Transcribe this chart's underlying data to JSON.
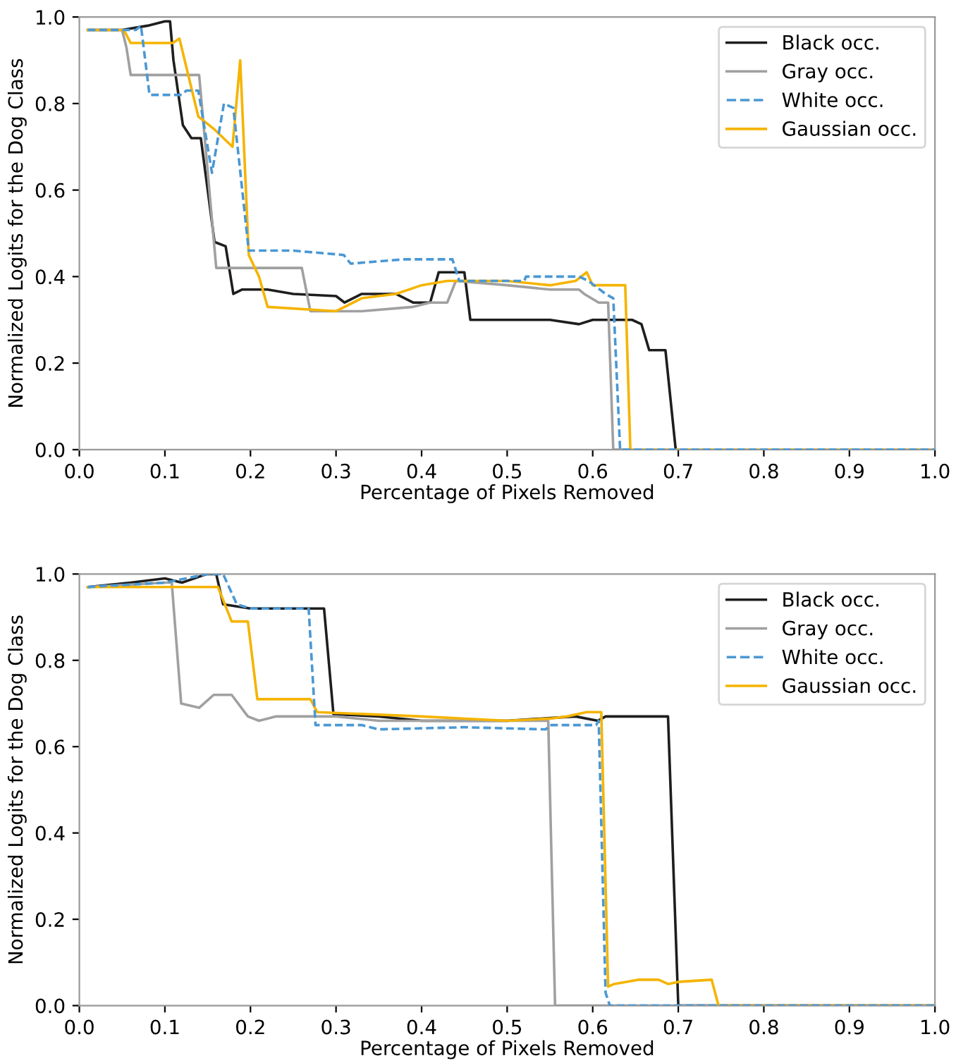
{
  "chart_data": [
    {
      "type": "line",
      "xlabel": "Percentage of Pixels Removed",
      "ylabel": "Normalized Logits for the Dog Class",
      "xlim": [
        0,
        1
      ],
      "ylim": [
        0,
        1
      ],
      "xticks": [
        {
          "value": 0,
          "label": "0.0"
        },
        {
          "value": 0.1,
          "label": "0.1"
        },
        {
          "value": 0.2,
          "label": "0.2"
        },
        {
          "value": 0.3,
          "label": "0.3"
        },
        {
          "value": 0.4,
          "label": "0.4"
        },
        {
          "value": 0.5,
          "label": "0.5"
        },
        {
          "value": 0.6,
          "label": "0.6"
        },
        {
          "value": 0.7,
          "label": "0.7"
        },
        {
          "value": 0.8,
          "label": "0.8"
        },
        {
          "value": 0.9,
          "label": "0.9"
        },
        {
          "value": 1,
          "label": "1.0"
        }
      ],
      "yticks": [
        {
          "value": 0,
          "label": "0.0"
        },
        {
          "value": 0.2,
          "label": "0.2"
        },
        {
          "value": 0.4,
          "label": "0.4"
        },
        {
          "value": 0.6,
          "label": "0.6"
        },
        {
          "value": 0.8,
          "label": "0.8"
        },
        {
          "value": 1,
          "label": "1.0"
        }
      ],
      "grid": false,
      "legend": "top right",
      "marker": "none",
      "series": [
        {
          "name": "Black occ.",
          "color": "#1e1e1e",
          "line_style": "solid",
          "x": [
            0.01,
            0.05,
            0.08,
            0.1,
            0.106,
            0.11,
            0.121,
            0.131,
            0.142,
            0.158,
            0.171,
            0.18,
            0.19,
            0.22,
            0.25,
            0.3,
            0.31,
            0.33,
            0.37,
            0.39,
            0.41,
            0.42,
            0.45,
            0.457,
            0.5,
            0.55,
            0.584,
            0.6,
            0.646,
            0.657,
            0.666,
            0.685,
            0.697,
            1.0
          ],
          "values": [
            0.97,
            0.97,
            0.98,
            0.99,
            0.99,
            0.9,
            0.75,
            0.72,
            0.72,
            0.48,
            0.47,
            0.36,
            0.37,
            0.37,
            0.36,
            0.355,
            0.34,
            0.36,
            0.36,
            0.34,
            0.34,
            0.41,
            0.41,
            0.3,
            0.3,
            0.3,
            0.29,
            0.3,
            0.3,
            0.29,
            0.23,
            0.23,
            0,
            0
          ]
        },
        {
          "name": "Gray occ.",
          "color": "#a0a0a0",
          "line_style": "solid",
          "x": [
            0.01,
            0.05,
            0.055,
            0.06,
            0.14,
            0.16,
            0.26,
            0.27,
            0.33,
            0.39,
            0.41,
            0.42,
            0.43,
            0.44,
            0.5,
            0.55,
            0.584,
            0.59,
            0.607,
            0.618,
            0.624,
            1.0
          ],
          "values": [
            0.97,
            0.97,
            0.93,
            0.866,
            0.866,
            0.42,
            0.42,
            0.32,
            0.32,
            0.33,
            0.34,
            0.34,
            0.34,
            0.39,
            0.38,
            0.37,
            0.37,
            0.36,
            0.34,
            0.34,
            0,
            0
          ]
        },
        {
          "name": "White occ.",
          "color": "#4a98d4",
          "line_style": "dashed",
          "x": [
            0.01,
            0.066,
            0.072,
            0.082,
            0.12,
            0.125,
            0.139,
            0.155,
            0.169,
            0.18,
            0.198,
            0.25,
            0.309,
            0.317,
            0.38,
            0.436,
            0.444,
            0.52,
            0.522,
            0.584,
            0.595,
            0.615,
            0.624,
            0.632,
            1.0
          ],
          "values": [
            0.97,
            0.97,
            0.98,
            0.82,
            0.82,
            0.83,
            0.83,
            0.64,
            0.8,
            0.79,
            0.46,
            0.46,
            0.45,
            0.43,
            0.44,
            0.44,
            0.39,
            0.39,
            0.4,
            0.4,
            0.39,
            0.36,
            0.35,
            0,
            0
          ]
        },
        {
          "name": "Gaussian occ.",
          "color": "#f5b400",
          "line_style": "solid",
          "x": [
            0.01,
            0.052,
            0.06,
            0.109,
            0.117,
            0.139,
            0.158,
            0.179,
            0.188,
            0.198,
            0.21,
            0.22,
            0.3,
            0.31,
            0.33,
            0.37,
            0.4,
            0.43,
            0.5,
            0.55,
            0.58,
            0.593,
            0.6,
            0.638,
            0.644,
            1.0
          ],
          "values": [
            0.97,
            0.97,
            0.94,
            0.94,
            0.95,
            0.77,
            0.74,
            0.7,
            0.9,
            0.45,
            0.4,
            0.33,
            0.32,
            0.33,
            0.35,
            0.36,
            0.38,
            0.39,
            0.39,
            0.38,
            0.39,
            0.41,
            0.38,
            0.38,
            0,
            0
          ]
        }
      ]
    },
    {
      "type": "line",
      "xlabel": "Percentage of Pixels Removed",
      "ylabel": "Normalized Logits for the Dog Class",
      "xlim": [
        0,
        1
      ],
      "ylim": [
        0,
        1
      ],
      "xticks": [
        {
          "value": 0,
          "label": "0.0"
        },
        {
          "value": 0.1,
          "label": "0.1"
        },
        {
          "value": 0.2,
          "label": "0.2"
        },
        {
          "value": 0.3,
          "label": "0.3"
        },
        {
          "value": 0.4,
          "label": "0.4"
        },
        {
          "value": 0.5,
          "label": "0.5"
        },
        {
          "value": 0.6,
          "label": "0.6"
        },
        {
          "value": 0.7,
          "label": "0.7"
        },
        {
          "value": 0.8,
          "label": "0.8"
        },
        {
          "value": 0.9,
          "label": "0.9"
        },
        {
          "value": 1,
          "label": "1.0"
        }
      ],
      "yticks": [
        {
          "value": 0,
          "label": "0.0"
        },
        {
          "value": 0.2,
          "label": "0.2"
        },
        {
          "value": 0.4,
          "label": "0.4"
        },
        {
          "value": 0.6,
          "label": "0.6"
        },
        {
          "value": 0.8,
          "label": "0.8"
        },
        {
          "value": 1,
          "label": "1.0"
        }
      ],
      "grid": false,
      "legend": "top right",
      "marker": "none",
      "series": [
        {
          "name": "Black occ.",
          "color": "#1e1e1e",
          "line_style": "solid",
          "x": [
            0.01,
            0.06,
            0.1,
            0.12,
            0.149,
            0.16,
            0.168,
            0.2,
            0.286,
            0.297,
            0.35,
            0.4,
            0.5,
            0.58,
            0.606,
            0.615,
            0.688,
            0.7,
            1.0
          ],
          "values": [
            0.97,
            0.98,
            0.99,
            0.98,
            1.0,
            1.0,
            0.93,
            0.92,
            0.92,
            0.675,
            0.67,
            0.66,
            0.66,
            0.67,
            0.66,
            0.67,
            0.67,
            0,
            0
          ]
        },
        {
          "name": "Gray occ.",
          "color": "#a0a0a0",
          "line_style": "solid",
          "x": [
            0.01,
            0.1,
            0.108,
            0.119,
            0.14,
            0.157,
            0.178,
            0.197,
            0.21,
            0.23,
            0.3,
            0.35,
            0.45,
            0.548,
            0.556,
            1.0
          ],
          "values": [
            0.97,
            0.98,
            0.98,
            0.7,
            0.69,
            0.72,
            0.72,
            0.67,
            0.66,
            0.67,
            0.67,
            0.66,
            0.66,
            0.66,
            0,
            0
          ]
        },
        {
          "name": "White occ.",
          "color": "#4a98d4",
          "line_style": "dashed",
          "x": [
            0.01,
            0.1,
            0.15,
            0.168,
            0.184,
            0.2,
            0.268,
            0.276,
            0.33,
            0.35,
            0.45,
            0.545,
            0.55,
            0.604,
            0.607,
            0.615,
            0.62,
            1.0
          ],
          "values": [
            0.97,
            0.98,
            1.0,
            1.0,
            0.93,
            0.92,
            0.92,
            0.65,
            0.65,
            0.64,
            0.645,
            0.64,
            0.65,
            0.65,
            0.66,
            0.03,
            0,
            0
          ]
        },
        {
          "name": "Gaussian occ.",
          "color": "#f5b400",
          "line_style": "solid",
          "x": [
            0.01,
            0.15,
            0.162,
            0.178,
            0.197,
            0.208,
            0.27,
            0.278,
            0.4,
            0.5,
            0.55,
            0.57,
            0.593,
            0.607,
            0.61,
            0.618,
            0.625,
            0.654,
            0.677,
            0.688,
            0.7,
            0.739,
            0.747,
            1.0
          ],
          "values": [
            0.97,
            0.97,
            0.97,
            0.89,
            0.89,
            0.71,
            0.71,
            0.68,
            0.67,
            0.66,
            0.665,
            0.67,
            0.68,
            0.68,
            0.68,
            0.044,
            0.05,
            0.06,
            0.06,
            0.05,
            0.055,
            0.06,
            0,
            0
          ]
        }
      ]
    }
  ]
}
